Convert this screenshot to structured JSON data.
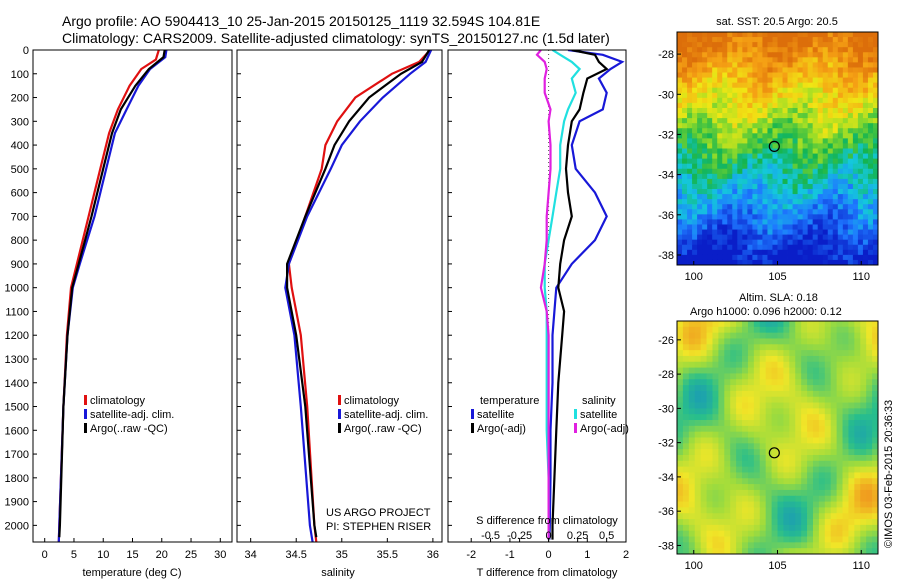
{
  "header": {
    "line1": "Argo profile: AO 5904413_10 25-Jan-2015 20150125_1119 32.594S 104.81E",
    "line2": "Climatology: CARS2009. Satellite-adjusted climatology: synTS_20150127.nc (1.5d later)"
  },
  "colors": {
    "climatology": "#e01010",
    "satellite": "#1818d8",
    "argo": "#000000",
    "sat_salinity": "#20e0e0",
    "argo_salinity": "#e020e0"
  },
  "chart_data": [
    {
      "type": "line",
      "id": "temperature",
      "xlabel": "temperature (deg C)",
      "xlim": [
        -2,
        32
      ],
      "ylim": [
        2070,
        0
      ],
      "x_ticks": [
        "0",
        "5",
        "10",
        "15",
        "20",
        "25",
        "30"
      ],
      "x_tick_values": [
        0,
        5,
        10,
        15,
        20,
        25,
        30
      ],
      "y_ticks": [
        "0",
        "100",
        "200",
        "300",
        "400",
        "500",
        "600",
        "700",
        "800",
        "900",
        "1000",
        "1100",
        "1200",
        "1300",
        "1400",
        "1500",
        "1600",
        "1700",
        "1800",
        "1900",
        "2000"
      ],
      "legend": [
        "climatology",
        "satellite-adj. clim.",
        "Argo(..raw -QC)"
      ],
      "series": [
        {
          "name": "climatology",
          "color": "#e01010",
          "depth": [
            0,
            40,
            80,
            150,
            250,
            350,
            500,
            700,
            900,
            1000,
            1200,
            1500,
            2000,
            2070
          ],
          "values": [
            19.5,
            19.0,
            16.5,
            14.5,
            12.5,
            11.0,
            9.5,
            7.5,
            5.5,
            4.5,
            3.8,
            3.2,
            2.5,
            2.4
          ]
        },
        {
          "name": "satellite-adj. clim.",
          "color": "#1818d8",
          "depth": [
            0,
            30,
            80,
            150,
            250,
            350,
            500,
            700,
            900,
            1000,
            1200,
            1500,
            2000,
            2070
          ],
          "values": [
            20.8,
            20.6,
            18.0,
            16.0,
            14.0,
            12.0,
            10.5,
            8.5,
            6.0,
            4.8,
            3.9,
            3.2,
            2.5,
            2.4
          ]
        },
        {
          "name": "Argo(..raw -QC)",
          "color": "#000000",
          "depth": [
            0,
            30,
            80,
            150,
            250,
            350,
            500,
            700,
            900,
            1000,
            1200,
            1500,
            2000,
            2050
          ],
          "values": [
            20.5,
            20.3,
            17.8,
            15.5,
            13.0,
            11.5,
            10.0,
            8.0,
            5.8,
            4.7,
            3.9,
            3.2,
            2.6,
            2.5
          ]
        }
      ]
    },
    {
      "type": "line",
      "id": "salinity",
      "xlabel": "salinity",
      "xlim": [
        33.85,
        36.1
      ],
      "ylim": [
        2070,
        0
      ],
      "x_ticks": [
        "34",
        "34.5",
        "35",
        "35.5",
        "36"
      ],
      "x_tick_values": [
        34,
        34.5,
        35,
        35.5,
        36
      ],
      "legend": [
        "climatology",
        "satellite-adj. clim.",
        "Argo(..raw -QC)"
      ],
      "annotation": [
        "US ARGO PROJECT",
        "PI: STEPHEN RISER"
      ],
      "series": [
        {
          "name": "climatology",
          "color": "#e01010",
          "depth": [
            0,
            50,
            100,
            200,
            300,
            400,
            500,
            700,
            900,
            1000,
            1200,
            1500,
            2000,
            2070
          ],
          "values": [
            35.97,
            35.85,
            35.55,
            35.15,
            34.95,
            34.82,
            34.78,
            34.6,
            34.42,
            34.45,
            34.55,
            34.62,
            34.7,
            34.72
          ]
        },
        {
          "name": "satellite-adj. clim.",
          "color": "#1818d8",
          "depth": [
            0,
            50,
            100,
            200,
            300,
            400,
            500,
            700,
            900,
            1000,
            1200,
            1500,
            2000,
            2070
          ],
          "values": [
            35.98,
            35.92,
            35.75,
            35.45,
            35.2,
            35.0,
            34.88,
            34.62,
            34.42,
            34.38,
            34.48,
            34.55,
            34.65,
            34.68
          ]
        },
        {
          "name": "Argo(..raw -QC)",
          "color": "#000000",
          "depth": [
            0,
            50,
            100,
            200,
            300,
            400,
            500,
            700,
            900,
            1000,
            1200,
            1500,
            2000,
            2050
          ],
          "values": [
            35.96,
            35.88,
            35.65,
            35.3,
            35.08,
            34.92,
            34.82,
            34.6,
            34.4,
            34.4,
            34.5,
            34.6,
            34.7,
            34.72
          ]
        }
      ]
    },
    {
      "type": "line",
      "id": "difference",
      "xlabel": "T difference from climatology",
      "xlabel2": "S difference from climatology",
      "xlim": [
        -2.6,
        2.0
      ],
      "ylim": [
        2070,
        0
      ],
      "x_ticks": [
        "-2",
        "-1",
        "0",
        "1",
        "2"
      ],
      "x_tick_values": [
        -2,
        -1,
        0,
        1,
        2
      ],
      "s_ticks": [
        "-0.5",
        "-0.25",
        "0",
        "0.25",
        "0.5"
      ],
      "s_tick_values": [
        -1.5,
        -0.75,
        0,
        0.75,
        1.5
      ],
      "legend_groups": [
        "temperature",
        "salinity"
      ],
      "legend": [
        "satellite",
        "Argo(-adj)",
        "satellite",
        "Argo(-adj)"
      ],
      "series": [
        {
          "name": "temperature satellite",
          "color": "#1818d8",
          "depth": [
            0,
            20,
            50,
            80,
            120,
            180,
            250,
            300,
            400,
            500,
            600,
            700,
            800,
            900,
            1000,
            1100,
            1200,
            1400,
            1600,
            1800,
            2000,
            2060
          ],
          "values": [
            0.5,
            1.4,
            1.9,
            1.6,
            1.3,
            1.5,
            1.4,
            0.8,
            0.6,
            0.7,
            1.2,
            1.5,
            1.2,
            0.6,
            0.2,
            0.15,
            0.1,
            0.1,
            0.05,
            0.05,
            0.03,
            0.02
          ]
        },
        {
          "name": "temperature Argo(-adj)",
          "color": "#000000",
          "depth": [
            0,
            20,
            50,
            80,
            120,
            180,
            250,
            300,
            400,
            500,
            600,
            700,
            800,
            900,
            1000,
            1100,
            1200,
            1400,
            1600,
            1800,
            2000,
            2060
          ],
          "values": [
            0.6,
            1.2,
            1.3,
            1.5,
            1.0,
            0.9,
            0.8,
            0.6,
            0.5,
            0.45,
            0.5,
            0.6,
            0.4,
            0.3,
            0.25,
            0.4,
            0.35,
            0.25,
            0.2,
            0.15,
            0.1,
            0.1
          ]
        },
        {
          "name": "salinity satellite",
          "color": "#20e0e0",
          "depth": [
            0,
            20,
            50,
            80,
            120,
            180,
            250,
            300,
            400,
            500,
            600,
            700,
            800,
            900,
            1000,
            1100,
            1200,
            1400,
            1600,
            1800,
            2000,
            2060
          ],
          "values": [
            0.1,
            0.3,
            0.6,
            0.8,
            0.6,
            0.7,
            0.5,
            0.4,
            0.3,
            0.3,
            0.2,
            0.1,
            0.0,
            -0.1,
            -0.1,
            -0.05,
            -0.05,
            -0.05,
            -0.05,
            0.0,
            0.0,
            0.0
          ]
        },
        {
          "name": "salinity Argo(-adj)",
          "color": "#e020e0",
          "depth": [
            0,
            20,
            50,
            80,
            120,
            180,
            250,
            300,
            400,
            500,
            600,
            700,
            800,
            900,
            1000,
            1100,
            1200,
            1400,
            1600,
            1800,
            2000,
            2060
          ],
          "values": [
            -0.2,
            -0.3,
            -0.1,
            -0.05,
            -0.1,
            -0.1,
            0.05,
            0.0,
            0.05,
            0.05,
            0.0,
            -0.05,
            -0.05,
            -0.1,
            -0.2,
            -0.05,
            0.0,
            0.0,
            0.0,
            0.0,
            0.0,
            0.0
          ]
        }
      ]
    },
    {
      "type": "heatmap",
      "id": "sst-map",
      "title": "sat. SST: 20.5 Argo: 20.5",
      "xlim": [
        99,
        111
      ],
      "ylim": [
        -38.5,
        -26.9
      ],
      "x_ticks": [
        "100",
        "105",
        "110"
      ],
      "x_tick_values": [
        100,
        105,
        110
      ],
      "y_ticks": [
        "-28",
        "-30",
        "-32",
        "-34",
        "-36",
        "-38"
      ],
      "y_tick_values": [
        -28,
        -30,
        -32,
        -34,
        -36,
        -38
      ],
      "marker": {
        "lon": 104.81,
        "lat": -32.594
      }
    },
    {
      "type": "heatmap",
      "id": "sla-map",
      "title": "Altim. SLA: 0.18",
      "subtitle": "Argo h1000: 0.096 h2000: 0.12",
      "xlim": [
        99,
        111
      ],
      "ylim": [
        -38.5,
        -24.9
      ],
      "x_ticks": [
        "100",
        "105",
        "110"
      ],
      "x_tick_values": [
        100,
        105,
        110
      ],
      "y_ticks": [
        "-26",
        "-28",
        "-30",
        "-32",
        "-34",
        "-36",
        "-38"
      ],
      "y_tick_values": [
        -26,
        -28,
        -30,
        -32,
        -34,
        -36,
        -38
      ],
      "marker": {
        "lon": 104.81,
        "lat": -32.594
      }
    }
  ],
  "credit": "©IMOS 03-Feb-2015 20:36:33"
}
